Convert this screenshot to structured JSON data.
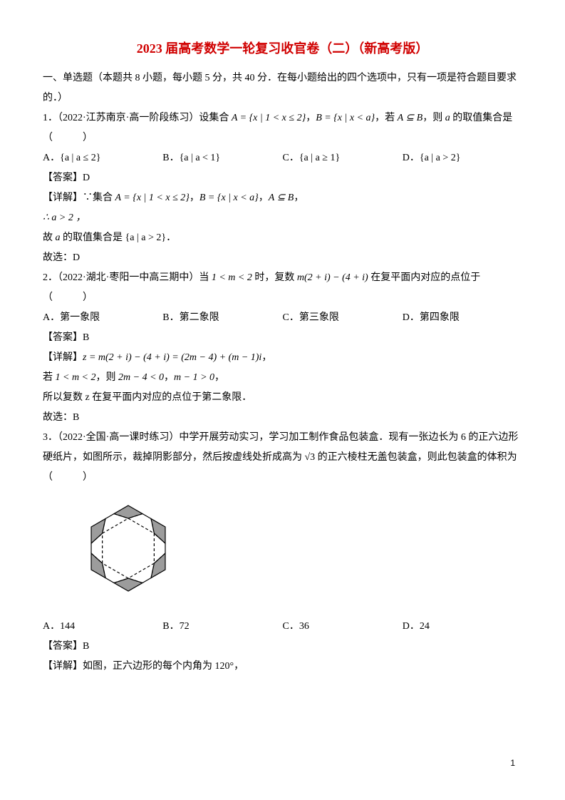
{
  "title": "2023 届高考数学一轮复习收官卷（二）（新高考版）",
  "title_color": "#d00000",
  "section1_intro": "一、单选题（本题共 8 小题，每小题 5 分，共 40 分．在每小题给出的四个选项中，只有一项是符合题目要求的．）",
  "q1": {
    "stem_prefix": "1．（2022·江苏南京·高一阶段练习）设集合 ",
    "math1": "A = {x | 1 < x ≤ 2}",
    "sep1": "，",
    "math2": "B = {x | x < a}",
    "sep2": "，若 ",
    "math3": "A ⊆ B",
    "sep3": "，则 ",
    "math4": "a",
    "stem_suffix": " 的取值集合是（　　　）",
    "options": {
      "A": "A．{a | a ≤ 2}",
      "B": "B．{a | a < 1}",
      "C": "C．{a | a ≥ 1}",
      "D": "D．{a | a > 2}"
    },
    "answer": "【答案】D",
    "detail_label": "【详解】∵集合 ",
    "detail_m1": "A = {x | 1 < x ≤ 2}",
    "detail_s1": "，",
    "detail_m2": "B = {x | x < a}",
    "detail_s2": "，",
    "detail_m3": "A ⊆ B",
    "detail_s3": "，",
    "line2": "∴ a > 2 ，",
    "line3_pre": "故 ",
    "line3_m": "a",
    "line3_post": " 的取值集合是 {a | a > 2}．",
    "pick": "故选：D"
  },
  "q2": {
    "stem_prefix": "2．（2022·湖北·枣阳一中高三期中）当 ",
    "math1": "1 < m < 2",
    "sep1": " 时，复数 ",
    "math2": "m(2 + i) − (4 + i)",
    "stem_suffix": " 在复平面内对应的点位于（　　　）",
    "options": {
      "A": "A．第一象限",
      "B": "B．第二象限",
      "C": "C．第三象限",
      "D": "D．第四象限"
    },
    "answer": "【答案】B",
    "detail_label": "【详解】",
    "detail_m1": "z = m(2 + i) − (4 + i) = (2m − 4) + (m − 1)i",
    "detail_s1": "，",
    "line2_pre": "若 ",
    "line2_m1": "1 < m < 2",
    "line2_s1": "，则 ",
    "line2_m2": "2m − 4 < 0",
    "line2_s2": "，",
    "line2_m3": "m − 1 > 0",
    "line2_s3": "，",
    "line3": "所以复数 z 在复平面内对应的点位于第二象限．",
    "pick": "故选：B"
  },
  "q3": {
    "stem": "3．（2022·全国·高一课时练习）中学开展劳动实习，学习加工制作食品包装盒．现有一张边长为 6 的正六边形硬纸片，如图所示，裁掉阴影部分，然后按虚线处折成高为 √3 的正六棱柱无盖包装盒，则此包装盒的体积为（　　　）",
    "options": {
      "A": "A．144",
      "B": "B．72",
      "C": "C．36",
      "D": "D．24"
    },
    "answer": "【答案】B",
    "detail": "【详解】如图，正六边形的每个内角为 120°，"
  },
  "hexagon": {
    "outer_side": 60,
    "inner_side": 42,
    "stroke": "#000000",
    "fill_shade": "#9c9c9c",
    "dash": "4,3",
    "stroke_width": 1.2,
    "width": 160,
    "height": 150
  },
  "page_number": "1",
  "body_fontsize": 14,
  "title_fontsize": 18,
  "line_height": 2.0
}
